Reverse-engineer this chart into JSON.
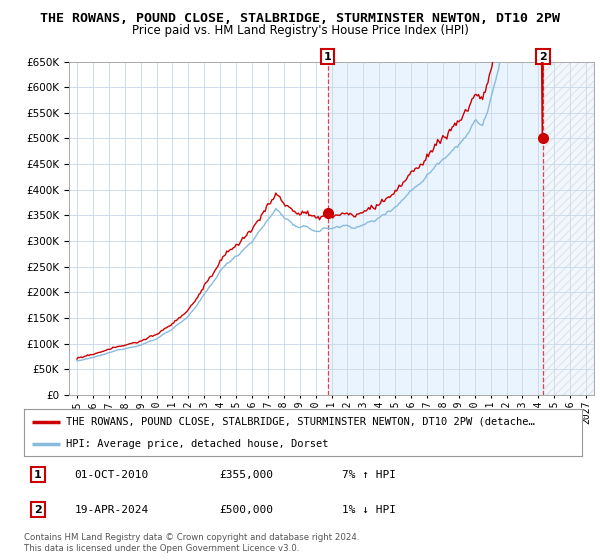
{
  "title": "THE ROWANS, POUND CLOSE, STALBRIDGE, STURMINSTER NEWTON, DT10 2PW",
  "subtitle": "Price paid vs. HM Land Registry's House Price Index (HPI)",
  "ylim": [
    0,
    650000
  ],
  "yticks": [
    0,
    50000,
    100000,
    150000,
    200000,
    250000,
    300000,
    350000,
    400000,
    450000,
    500000,
    550000,
    600000,
    650000
  ],
  "xlim_start": 1994.5,
  "xlim_end": 2027.5,
  "bg_color": "#ffffff",
  "grid_color": "#c8d8e8",
  "shade_color": "#ddeeff",
  "hatch_color": "#c8d8e8",
  "line1_color": "#cc0000",
  "line2_color": "#88bbdd",
  "vline_color": "#dd4444",
  "marker1_x": 2010.75,
  "marker1_y": 355000,
  "marker2_x": 2024.29,
  "marker2_y": 500000,
  "annotation1_date": "01-OCT-2010",
  "annotation1_price": "£355,000",
  "annotation1_hpi": "7% ↑ HPI",
  "annotation2_date": "19-APR-2024",
  "annotation2_price": "£500,000",
  "annotation2_hpi": "1% ↓ HPI",
  "legend_line1": "THE ROWANS, POUND CLOSE, STALBRIDGE, STURMINSTER NEWTON, DT10 2PW (detache…",
  "legend_line2": "HPI: Average price, detached house, Dorset",
  "footnote": "Contains HM Land Registry data © Crown copyright and database right 2024.\nThis data is licensed under the Open Government Licence v3.0.",
  "title_fontsize": 9.5,
  "subtitle_fontsize": 8.5
}
